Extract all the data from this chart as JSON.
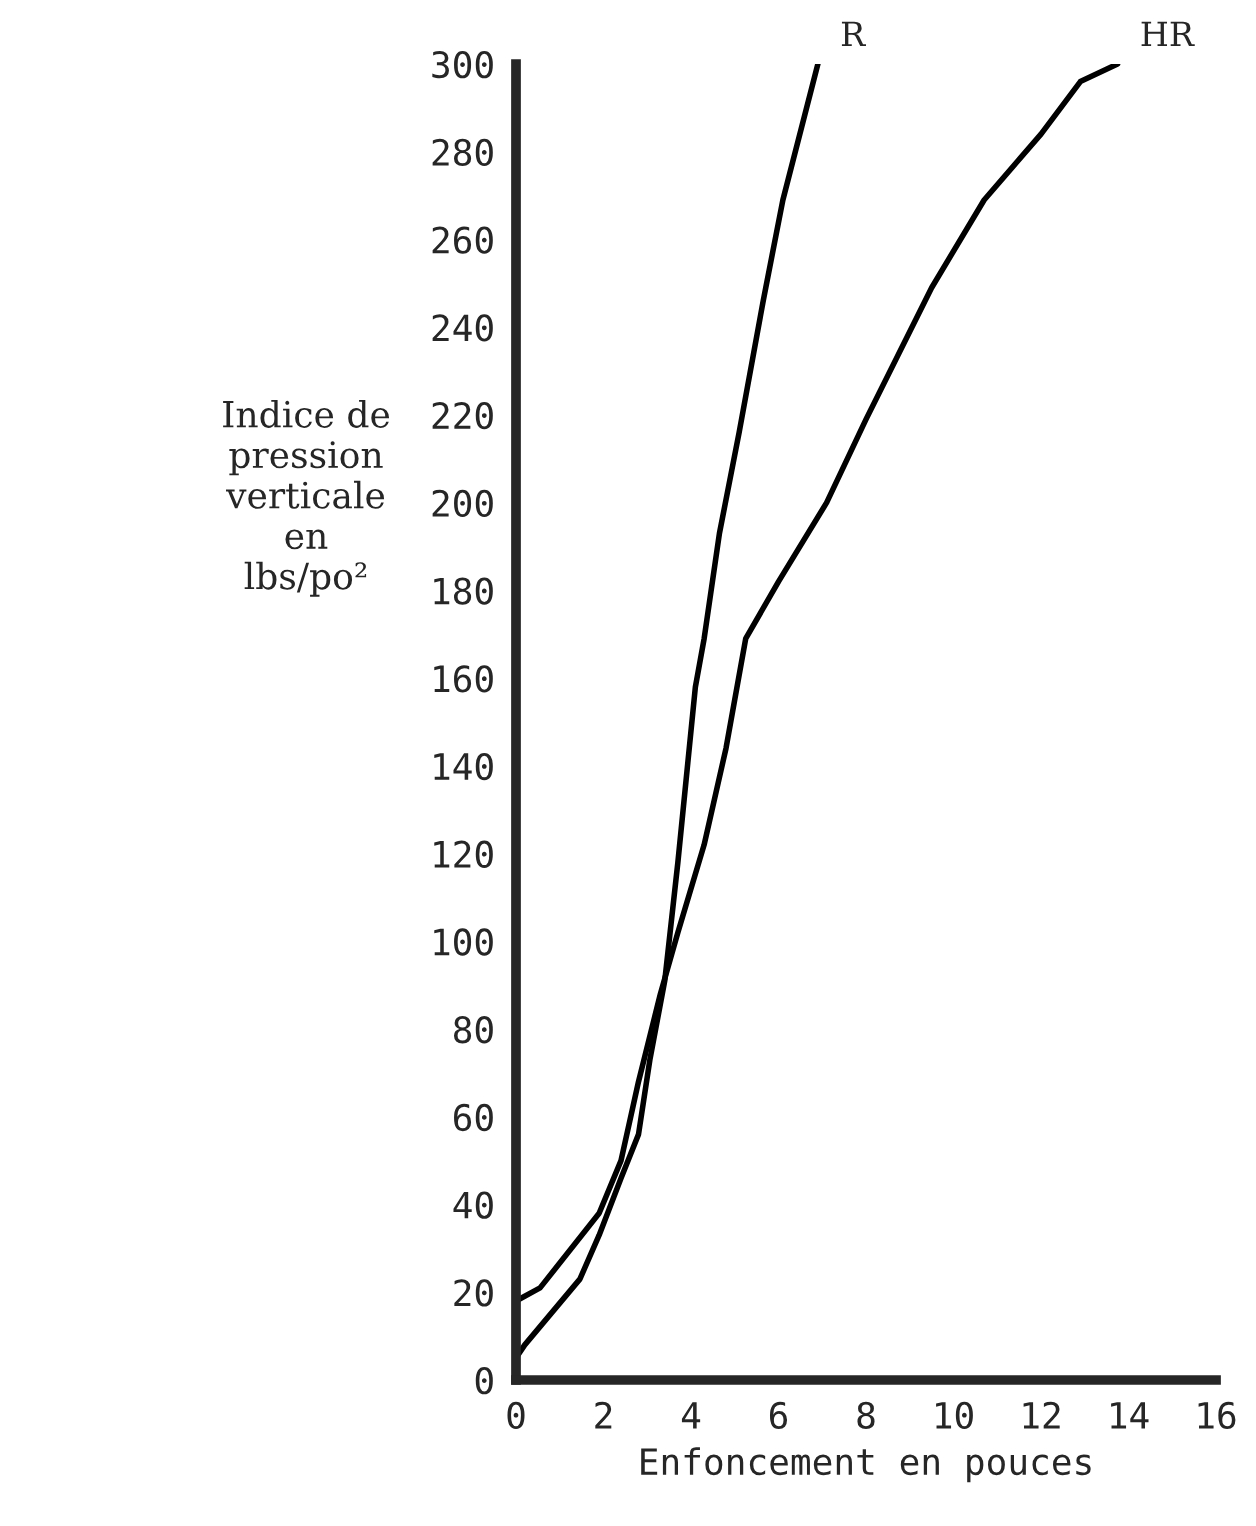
{
  "chart_data": {
    "type": "line",
    "xlabel": "Enfoncement en pouces",
    "ylabel": "Indice de\npression\nverticale\nen\nlbs/po²",
    "xlim": [
      0,
      16
    ],
    "ylim": [
      0,
      300
    ],
    "xticks": [
      0,
      2,
      4,
      6,
      8,
      10,
      12,
      14,
      16
    ],
    "yticks": [
      0,
      20,
      40,
      60,
      80,
      100,
      120,
      140,
      160,
      180,
      200,
      220,
      240,
      260,
      280,
      300
    ],
    "grid": false,
    "legend": false,
    "marker": "none",
    "line_style": "solid",
    "series": [
      {
        "name": "R",
        "color": "#000000",
        "x": [
          0,
          0.2,
          1.46,
          1.9,
          2.4,
          2.8,
          3.06,
          3.4,
          3.7,
          4.1,
          4.3,
          4.65,
          5.1,
          5.65,
          6.1,
          6.9
        ],
        "values": [
          5,
          8,
          23,
          33,
          46,
          56,
          73,
          91,
          118,
          158,
          169,
          193,
          216,
          246,
          269,
          300
        ]
      },
      {
        "name": "HR",
        "color": "#000000",
        "x": [
          0,
          0.55,
          1.9,
          2.4,
          2.8,
          3.3,
          3.7,
          4.3,
          4.8,
          5.25,
          6.0,
          7.1,
          8.0,
          9.5,
          10.7,
          12.0,
          12.9,
          13.75
        ],
        "values": [
          18,
          21,
          38,
          50,
          68,
          88,
          102,
          122,
          144,
          169,
          182,
          200,
          219,
          249,
          269,
          284,
          296,
          300
        ]
      }
    ]
  }
}
